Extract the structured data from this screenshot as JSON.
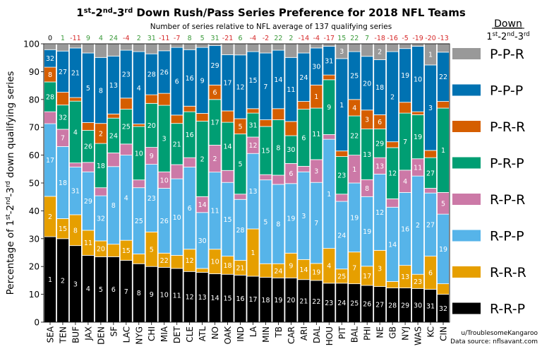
{
  "chart_data": {
    "type": "bar",
    "stacked": true,
    "title": {
      "parts": [
        "1",
        "st",
        "-2",
        "nd",
        "-3",
        "rd",
        " Down Rush/Pass Series Preference for 2018 NFL Teams"
      ]
    },
    "subtitle": "Number of series relative to NFL average of 137 qualifying series",
    "ylabel": {
      "parts": [
        "Percentage of 1",
        "st",
        "-2",
        "nd",
        "-3",
        "rd",
        " down qualifying series"
      ]
    },
    "ylim": [
      0,
      100
    ],
    "yticks": [
      0,
      10,
      20,
      30,
      40,
      50,
      60,
      70,
      80,
      90,
      100
    ],
    "legend": {
      "title": "Down",
      "subtitle_parts": [
        "1",
        "st",
        "-2",
        "nd",
        "-3",
        "rd"
      ],
      "placement": "right"
    },
    "categories": [
      "SEA",
      "TEN",
      "BUF",
      "JAX",
      "DEN",
      "SF",
      "LAC",
      "NYG",
      "CHI",
      "MIA",
      "DET",
      "CLE",
      "ATL",
      "NO",
      "OAK",
      "IND",
      "LA",
      "MIN",
      "TB",
      "CAR",
      "ARI",
      "DAL",
      "HOU",
      "PIT",
      "BAL",
      "PHI",
      "NE",
      "GB",
      "NYJ",
      "WAS",
      "KC",
      "CIN"
    ],
    "relative_counts": [
      0,
      1,
      -11,
      9,
      4,
      24,
      -4,
      2,
      31,
      -11,
      -7,
      8,
      5,
      31,
      -21,
      6,
      -4,
      -2,
      22,
      2,
      -14,
      -4,
      -17,
      15,
      22,
      7,
      -18,
      -16,
      -5,
      -19,
      -20,
      -13
    ],
    "positive_color": "#3a9a3a",
    "negative_color": "#d62728",
    "series": [
      {
        "name": "R-R-P",
        "color": "#000000",
        "values": [
          30.7,
          30,
          27.5,
          24,
          23.5,
          23.5,
          22.2,
          21,
          20,
          19.7,
          19.3,
          18.2,
          17.9,
          17.4,
          17.2,
          16.9,
          16.5,
          16.1,
          15.9,
          15.9,
          15.3,
          15,
          14,
          14,
          13.8,
          13.2,
          12.8,
          12.3,
          12.3,
          12.1,
          11.8,
          10
        ],
        "ranks": [
          1,
          2,
          3,
          4,
          5,
          6,
          7,
          8,
          9,
          10,
          11,
          12,
          13,
          14,
          15,
          16,
          17,
          18,
          19,
          20,
          21,
          22,
          23,
          24,
          25,
          26,
          27,
          28,
          29,
          30,
          31,
          32
        ]
      },
      {
        "name": "R-R-R",
        "color": "#E69F00",
        "values": [
          14.5,
          7.2,
          11.1,
          9,
          5.7,
          4.5,
          7.2,
          3.5,
          12.4,
          5.1,
          4.7,
          8,
          1.4,
          8.8,
          6.5,
          5.3,
          17,
          4.9,
          5.1,
          8.9,
          7.2,
          6.1,
          12.5,
          5.1,
          11.4,
          6.9,
          13,
          2.3,
          8.1,
          5.1,
          11.9,
          3.8
        ],
        "ranks": [
          2,
          15,
          8,
          11,
          20,
          null,
          15,
          null,
          5,
          22,
          null,
          12,
          null,
          10,
          18,
          21,
          1,
          null,
          24,
          9,
          14,
          19,
          4,
          25,
          7,
          17,
          3,
          null,
          13,
          23,
          6,
          null
        ]
      },
      {
        "name": "R-P-P",
        "color": "#56B4E9",
        "values": [
          26.1,
          25.9,
          17.1,
          21,
          16.2,
          27.9,
          30.6,
          23.8,
          24.3,
          23.3,
          27.5,
          29.5,
          20.1,
          27.7,
          26.5,
          21.9,
          27.1,
          30.1,
          28.5,
          25,
          31.5,
          29.1,
          39.2,
          24.3,
          24.8,
          25,
          27.4,
          26.7,
          26.2,
          35.3,
          22.7,
          25
        ],
        "ranks": [
          17,
          18,
          31,
          29,
          32,
          8,
          4,
          25,
          23,
          26,
          10,
          6,
          30,
          11,
          15,
          28,
          13,
          5,
          8,
          19,
          3,
          7,
          1,
          24,
          19,
          19,
          12,
          14,
          16,
          2,
          27,
          19
        ]
      },
      {
        "name": "R-P-R",
        "color": "#CC79A7",
        "values": [
          4.3,
          6.2,
          1.5,
          3.4,
          2.9,
          4.9,
          4,
          2.8,
          6.1,
          5.9,
          5.1,
          3.4,
          5.7,
          9.7,
          4.3,
          1.9,
          5.9,
          1.9,
          3.3,
          7.2,
          2,
          8.2,
          1.7,
          2.6,
          10,
          6.1,
          5.9,
          3,
          8,
          6.2,
          1.7,
          7.8
        ],
        "ranks": [
          null,
          7,
          null,
          null,
          null,
          null,
          null,
          null,
          9,
          10,
          null,
          null,
          14,
          2,
          null,
          null,
          12,
          null,
          null,
          6,
          null,
          3,
          null,
          null,
          1,
          8,
          13,
          null,
          4,
          11,
          null,
          5
        ]
      },
      {
        "name": "P-R-P",
        "color": "#009E73",
        "values": [
          10.7,
          8.7,
          22.2,
          11.5,
          15.9,
          12.5,
          12.5,
          19.2,
          15.8,
          23.9,
          14.8,
          16.5,
          27.1,
          16.4,
          17.3,
          21.6,
          8.6,
          17.3,
          19.9,
          10,
          20.5,
          18.5,
          19.7,
          13.5,
          14.1,
          18.2,
          10.3,
          18.4,
          20.5,
          15.8,
          11,
          30.3
        ],
        "ranks": [
          28,
          32,
          4,
          26,
          18,
          24,
          25,
          10,
          20,
          3,
          21,
          16,
          2,
          17,
          14,
          5,
          31,
          15,
          8,
          30,
          6,
          11,
          9,
          23,
          22,
          13,
          29,
          12,
          7,
          19,
          27,
          1
        ]
      },
      {
        "name": "P-R-R",
        "color": "#D55E00",
        "values": [
          5.3,
          4.6,
          1.3,
          2.8,
          7.2,
          1.5,
          4,
          0.9,
          3.1,
          4.3,
          3,
          2,
          2.8,
          5.2,
          4.1,
          5.5,
          1.6,
          2.4,
          4,
          5.1,
          2.8,
          8.3,
          1.7,
          2,
          5.9,
          6.8,
          5.1,
          2.1,
          3.9,
          1.1,
          2.6,
          2.4
        ],
        "ranks": [
          8,
          null,
          null,
          null,
          2,
          null,
          null,
          null,
          null,
          null,
          null,
          null,
          null,
          6,
          null,
          5,
          null,
          null,
          null,
          null,
          null,
          1,
          null,
          null,
          4,
          3,
          6,
          null,
          null,
          null,
          null,
          null
        ]
      },
      {
        "name": "P-P-P",
        "color": "#0072B2",
        "values": [
          6.3,
          14.8,
          17.8,
          25,
          23.7,
          20.8,
          17.2,
          26,
          14.7,
          15.3,
          24.3,
          20.3,
          23.7,
          14.2,
          20.2,
          22.9,
          20.5,
          24,
          21,
          23,
          17.4,
          13.3,
          10.3,
          33.2,
          17.2,
          19.3,
          19.8,
          32.4,
          19.3,
          23.5,
          30.7,
          17.7
        ],
        "ranks": [
          32,
          27,
          21,
          5,
          8,
          13,
          23,
          4,
          28,
          26,
          6,
          16,
          9,
          29,
          17,
          12,
          15,
          7,
          14,
          11,
          24,
          30,
          31,
          1,
          25,
          20,
          18,
          2,
          19,
          10,
          3,
          22
        ]
      },
      {
        "name": "P-P-R",
        "color": "#999999",
        "values": [
          2,
          2.5,
          1.5,
          3.3,
          4.9,
          4.4,
          2.3,
          2.8,
          3.6,
          2.5,
          1.3,
          2.1,
          1.3,
          0.6,
          3.9,
          4,
          2.8,
          3.3,
          2.3,
          4.9,
          3.3,
          1.5,
          0.9,
          5.3,
          2.8,
          4.6,
          5.7,
          2.8,
          1.7,
          0.9,
          7.6,
          3
        ],
        "ranks": [
          null,
          null,
          null,
          null,
          null,
          null,
          null,
          null,
          null,
          null,
          null,
          null,
          null,
          null,
          null,
          null,
          null,
          null,
          null,
          null,
          null,
          null,
          null,
          3,
          null,
          null,
          2,
          null,
          null,
          null,
          1,
          null
        ]
      }
    ]
  },
  "credits": {
    "author": "u/TroublesomeKangaroo",
    "source": "Data source: nflsavant.com"
  }
}
